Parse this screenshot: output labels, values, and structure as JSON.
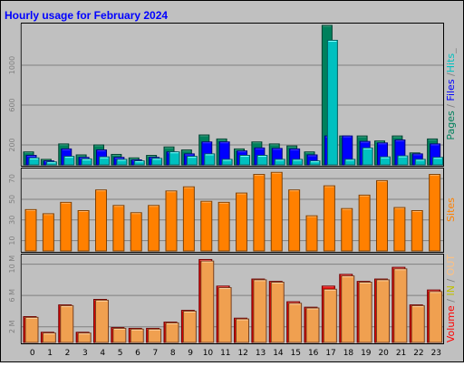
{
  "chart_data": {
    "type": "bar",
    "title": "Hourly usage for February 2024",
    "categories": [
      "0",
      "1",
      "2",
      "3",
      "4",
      "5",
      "6",
      "7",
      "8",
      "9",
      "10",
      "11",
      "12",
      "13",
      "14",
      "15",
      "16",
      "17",
      "18",
      "19",
      "20",
      "21",
      "22",
      "23"
    ],
    "panels": [
      {
        "id": "pages-files-hits",
        "right_labels": [
          {
            "text": "Pages",
            "color": "#00805c"
          },
          {
            "text": " / ",
            "color": "#808080"
          },
          {
            "text": "Files",
            "color": "#0000ff"
          },
          {
            "text": " /",
            "color": "#808080"
          },
          {
            "text": "Hits",
            "color": "#00c0c0"
          },
          {
            "text": "_",
            "color": "#808080"
          }
        ],
        "ylim": [
          0,
          1400
        ],
        "ticks": [
          {
            "value": 200,
            "label": "200"
          },
          {
            "value": 600,
            "label": "600"
          },
          {
            "value": 1000,
            "label": "1000"
          }
        ],
        "series": [
          {
            "name": "Hits",
            "color": "#00805c",
            "values": [
              130,
              55,
              210,
              100,
              200,
              105,
              70,
              95,
              180,
              150,
              300,
              260,
              160,
              230,
              210,
              190,
              130,
              1400,
              290,
              290,
              240,
              290,
              120,
              260
            ]
          },
          {
            "name": "Files",
            "color": "#0000ff",
            "values": [
              95,
              40,
              160,
              75,
              150,
              75,
              50,
              75,
              130,
              110,
              230,
              230,
              140,
              170,
              165,
              160,
              100,
              290,
              290,
              235,
              220,
              250,
              110,
              210
            ]
          },
          {
            "name": "Pages",
            "color": "#00c0c0",
            "values": [
              70,
              30,
              85,
              60,
              80,
              55,
              40,
              65,
              130,
              85,
              110,
              55,
              95,
              95,
              55,
              55,
              40,
              1250,
              55,
              170,
              80,
              90,
              55,
              75
            ]
          }
        ]
      },
      {
        "id": "sites",
        "right_labels": [
          {
            "text": "Sites",
            "color": "#ff8000"
          }
        ],
        "ylim": [
          0,
          78
        ],
        "ticks": [
          {
            "value": 10,
            "label": "10"
          },
          {
            "value": 30,
            "label": "30"
          },
          {
            "value": 50,
            "label": "50"
          },
          {
            "value": 70,
            "label": "70"
          }
        ],
        "series": [
          {
            "name": "Sites",
            "color": "#ff8000",
            "values": [
              40,
              36,
              47,
              39,
              59,
              44,
              37,
              44,
              58,
              62,
              48,
              47,
              56,
              74,
              76,
              59,
              34,
              63,
              41,
              54,
              68,
              42,
              39,
              74
            ]
          }
        ]
      },
      {
        "id": "volume",
        "right_labels": [
          {
            "text": "Volume",
            "color": "#ff0000"
          },
          {
            "text": " / ",
            "color": "#808080"
          },
          {
            "text": "IN",
            "color": "#c0c000"
          },
          {
            "text": " / ",
            "color": "#808080"
          },
          {
            "text": "OUT",
            "color": "#ffc080"
          },
          {
            "text": "Sites",
            "color": "#ff8000",
            "hidden": true
          }
        ],
        "ylim": [
          0,
          11
        ],
        "ticks": [
          {
            "value": 2,
            "label": "2 M"
          },
          {
            "value": 6,
            "label": "6 M"
          },
          {
            "value": 10,
            "label": "10 M"
          }
        ],
        "series": [
          {
            "name": "Volume",
            "color": "#e00000",
            "values": [
              3.3,
              1.3,
              4.8,
              1.3,
              5.5,
              1.9,
              1.8,
              1.8,
              2.6,
              4.1,
              10.6,
              7.2,
              3.1,
              8.1,
              7.8,
              5.2,
              4.5,
              7.2,
              8.7,
              7.8,
              8.1,
              9.6,
              4.8,
              6.7
            ]
          },
          {
            "name": "OUT",
            "color": "#f0a050",
            "values": [
              3.2,
              1.2,
              4.7,
              1.2,
              5.4,
              1.8,
              1.7,
              1.7,
              2.5,
              4.0,
              10.4,
              7.0,
              3.0,
              8.0,
              7.7,
              5.0,
              4.4,
              6.8,
              8.5,
              7.7,
              8.0,
              9.4,
              4.7,
              6.5
            ]
          }
        ]
      }
    ]
  },
  "colors": {
    "background": "#c0c0c0",
    "title": "#0000ff",
    "panel_border": "#000000",
    "tick_text": "#808080",
    "grid": "#808080"
  }
}
